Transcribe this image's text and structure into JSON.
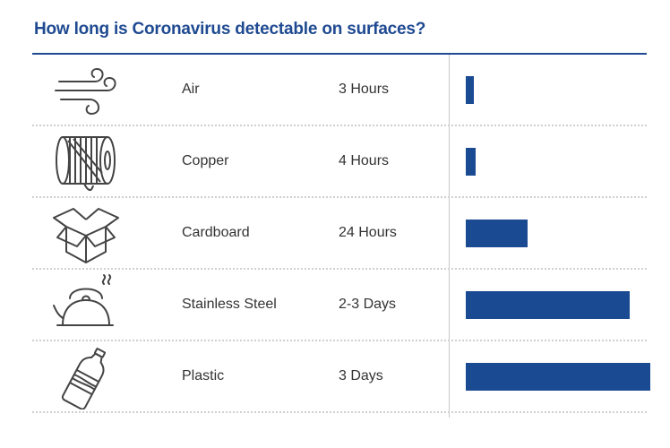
{
  "colors": {
    "accent": "#1f4a91",
    "bar": "#1a4a92",
    "icon_stroke": "#444444"
  },
  "chart_data": {
    "type": "bar",
    "orientation": "horizontal",
    "title": "How long is Coronavirus detectable on surfaces?",
    "xlabel": "",
    "ylabel": "",
    "unit": "hours",
    "xlim": [
      0,
      72
    ],
    "grid": false,
    "legend": "none",
    "categories": [
      "Air",
      "Copper",
      "Cardboard",
      "Stainless Steel",
      "Plastic"
    ],
    "value_labels": [
      "3 Hours",
      "4 Hours",
      "24 Hours",
      "2-3 Days",
      "3 Days"
    ],
    "values": [
      3,
      4,
      24,
      64,
      72
    ],
    "icons": [
      "wind-icon",
      "copper-wire-spool-icon",
      "cardboard-box-icon",
      "kettle-icon",
      "plastic-bottle-icon"
    ]
  }
}
